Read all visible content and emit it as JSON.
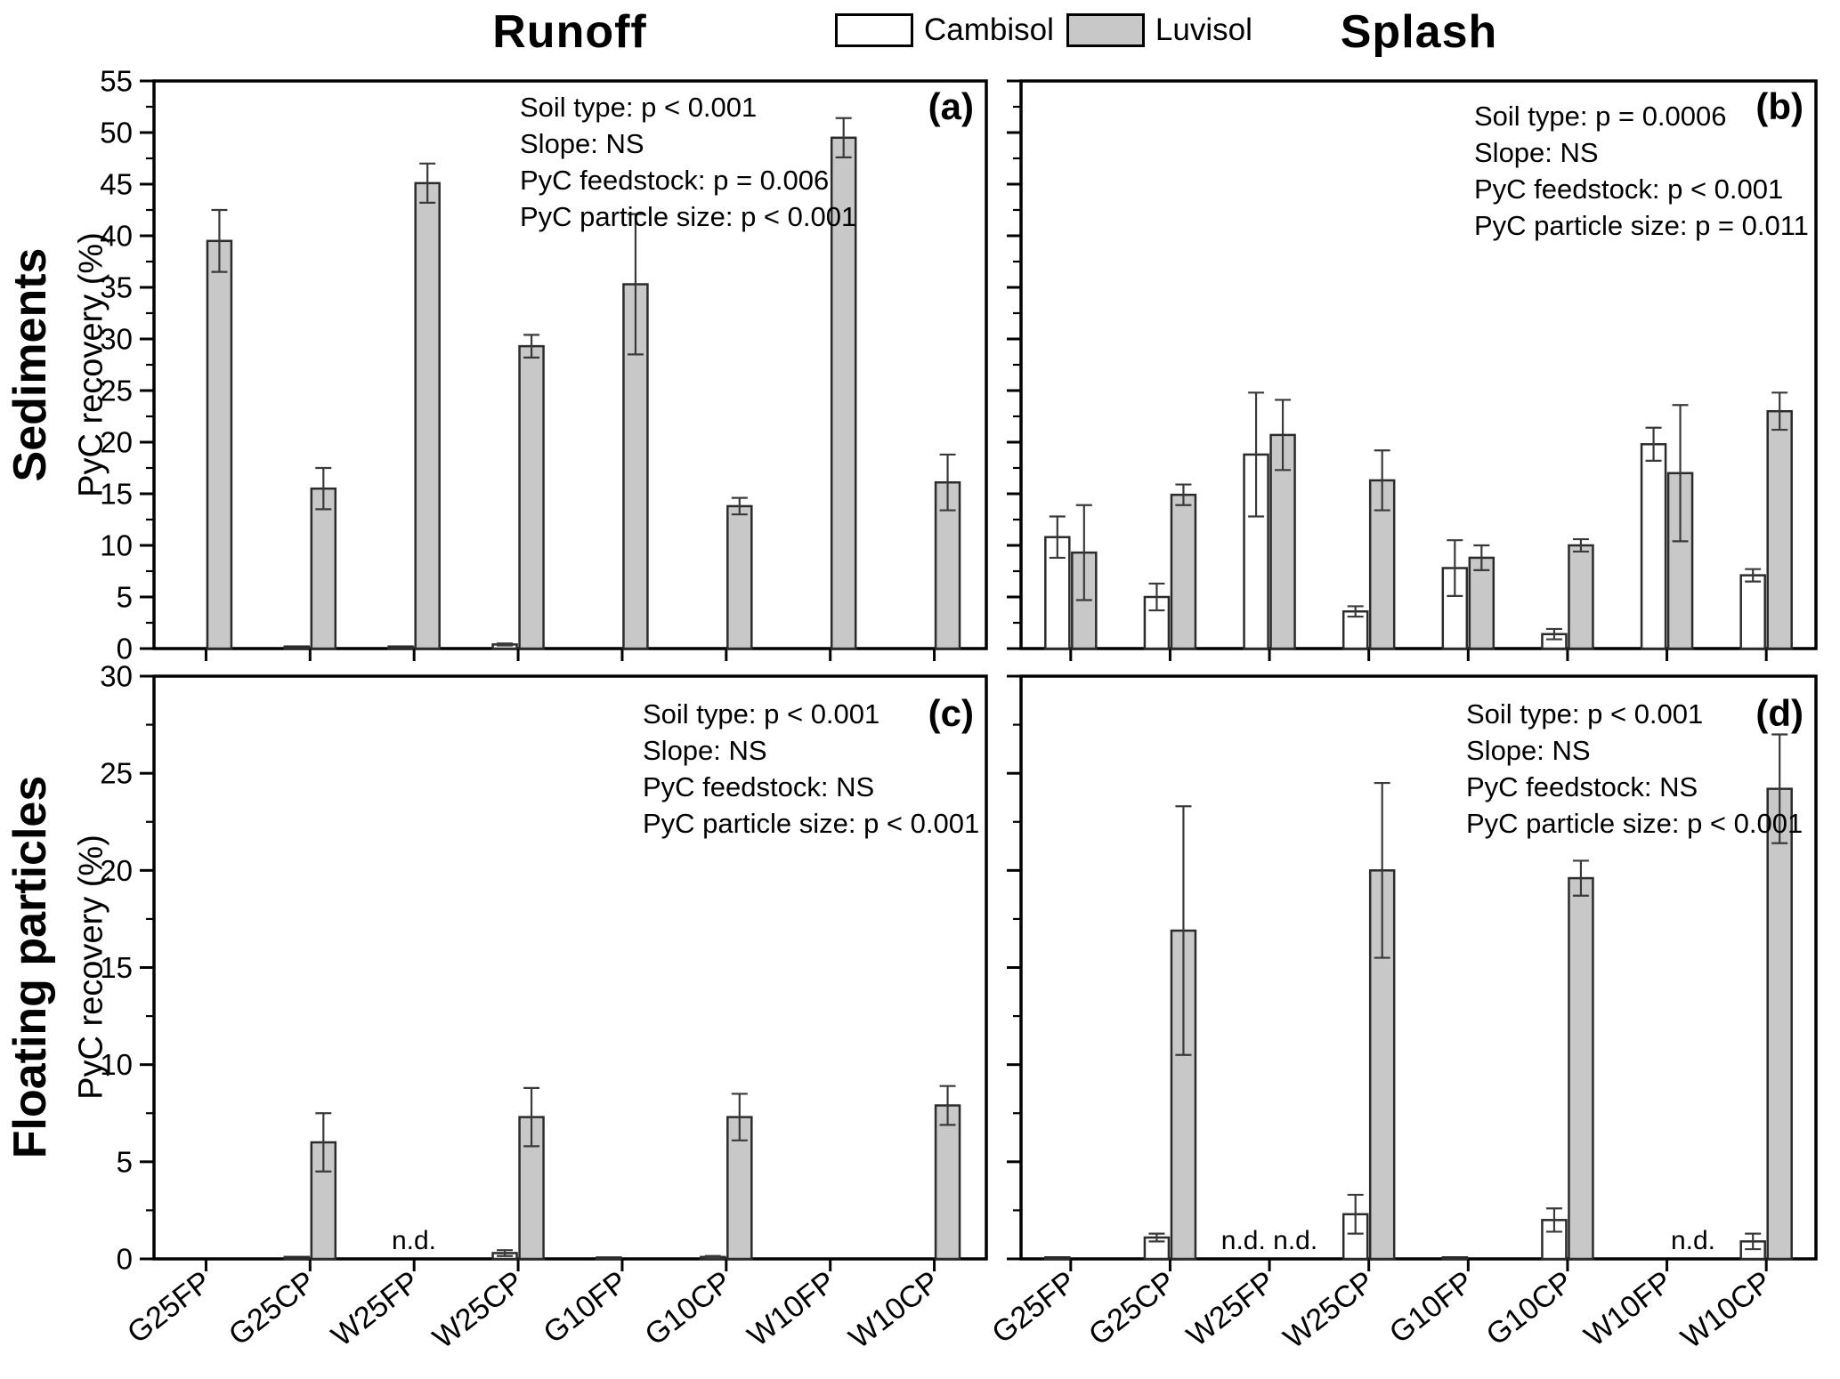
{
  "figure": {
    "columns": [
      "Runoff",
      "Splash"
    ],
    "rows": [
      "Sediments",
      "Floating particles"
    ],
    "y_axis_label": "PyC recovery (%)",
    "legend": {
      "items": [
        {
          "label": "Cambisol",
          "color": "#ffffff"
        },
        {
          "label": "Luvisol",
          "color": "#c8c8c8"
        }
      ]
    },
    "colors": {
      "axis": "#000000",
      "bar_stroke": "#2b2b2b",
      "cambisol_fill": "#ffffff",
      "luvisol_fill": "#c8c8c8",
      "error_bar": "#3a3a3a"
    }
  },
  "chart_data": {
    "type": "bar",
    "title": "",
    "xlabel": "",
    "ylabel": "PyC recovery (%)",
    "grid": false,
    "legend_position": "top-center",
    "x_label_rotation_deg": -38,
    "categories": [
      "G25FP",
      "G25CP",
      "W25FP",
      "W25CP",
      "G10FP",
      "G10CP",
      "W10FP",
      "W10CP"
    ],
    "series_names": [
      "Cambisol",
      "Luvisol"
    ],
    "panels": [
      {
        "letter": "(a)",
        "column": "Runoff",
        "row": "Sediments",
        "ylim": [
          0,
          55
        ],
        "ytick_major": 5,
        "ytick_minor": 2.5,
        "annotations": [
          "Soil type: p < 0.001",
          "Slope: NS",
          "PyC feedstock: p = 0.006",
          "PyC particle size: p < 0.001"
        ],
        "series": [
          {
            "name": "Cambisol",
            "values": [
              null,
              0.2,
              0.2,
              0.4,
              null,
              null,
              null,
              null
            ],
            "errors": [
              0,
              0,
              0,
              0.1,
              0,
              0,
              0,
              0
            ]
          },
          {
            "name": "Luvisol",
            "values": [
              39.5,
              15.5,
              45.1,
              29.3,
              35.3,
              13.8,
              49.5,
              16.1
            ],
            "errors": [
              3.0,
              2.0,
              1.9,
              1.1,
              6.8,
              0.8,
              1.9,
              2.7
            ]
          }
        ],
        "nd_labels": []
      },
      {
        "letter": "(b)",
        "column": "Splash",
        "row": "Sediments",
        "ylim": [
          0,
          55
        ],
        "ytick_major": 5,
        "ytick_minor": 2.5,
        "annotations": [
          "Soil type: p = 0.0006",
          "Slope: NS",
          "PyC feedstock: p < 0.001",
          "PyC particle size: p = 0.011"
        ],
        "series": [
          {
            "name": "Cambisol",
            "values": [
              10.8,
              5.0,
              18.8,
              3.6,
              7.8,
              1.4,
              19.8,
              7.1
            ],
            "errors": [
              2.0,
              1.3,
              6.0,
              0.5,
              2.7,
              0.5,
              1.6,
              0.6
            ]
          },
          {
            "name": "Luvisol",
            "values": [
              9.3,
              14.9,
              20.7,
              16.3,
              8.8,
              10.0,
              17.0,
              23.0
            ],
            "errors": [
              4.6,
              1.0,
              3.4,
              2.9,
              1.2,
              0.6,
              6.6,
              1.8
            ]
          }
        ],
        "nd_labels": []
      },
      {
        "letter": "(c)",
        "column": "Runoff",
        "row": "Floating particles",
        "ylim": [
          0,
          30
        ],
        "ytick_major": 5,
        "ytick_minor": 2.5,
        "annotations": [
          "Soil type: p < 0.001",
          "Slope: NS",
          "PyC feedstock: NS",
          "PyC particle size: p < 0.001"
        ],
        "series": [
          {
            "name": "Cambisol",
            "values": [
              null,
              0.1,
              null,
              0.3,
              0.05,
              0.1,
              null,
              null
            ],
            "errors": [
              0,
              0,
              0,
              0.15,
              0,
              0.05,
              0,
              0
            ]
          },
          {
            "name": "Luvisol",
            "values": [
              null,
              6.0,
              null,
              7.3,
              null,
              7.3,
              null,
              7.9
            ],
            "errors": [
              0,
              1.5,
              0,
              1.5,
              0,
              1.2,
              0,
              1.0
            ]
          }
        ],
        "nd_labels": [
          {
            "category": "W25FP",
            "text": "n.d."
          }
        ]
      },
      {
        "letter": "(d)",
        "column": "Splash",
        "row": "Floating particles",
        "ylim": [
          0,
          30
        ],
        "ytick_major": 5,
        "ytick_minor": 2.5,
        "annotations": [
          "Soil type: p < 0.001",
          "Slope: NS",
          "PyC feedstock: NS",
          "PyC particle size: p < 0.001"
        ],
        "series": [
          {
            "name": "Cambisol",
            "values": [
              0.08,
              1.1,
              null,
              2.3,
              0.08,
              2.0,
              null,
              0.9
            ],
            "errors": [
              0,
              0.2,
              0,
              1.0,
              0,
              0.6,
              0,
              0.4
            ]
          },
          {
            "name": "Luvisol",
            "values": [
              null,
              16.9,
              null,
              20.0,
              null,
              19.6,
              null,
              24.2
            ],
            "errors": [
              0,
              6.4,
              0,
              4.5,
              0,
              0.9,
              0,
              2.8
            ]
          }
        ],
        "nd_labels": [
          {
            "category": "W25FP",
            "text": "n.d. n.d."
          },
          {
            "category": "W10FP",
            "text": "n.d."
          }
        ]
      }
    ]
  }
}
